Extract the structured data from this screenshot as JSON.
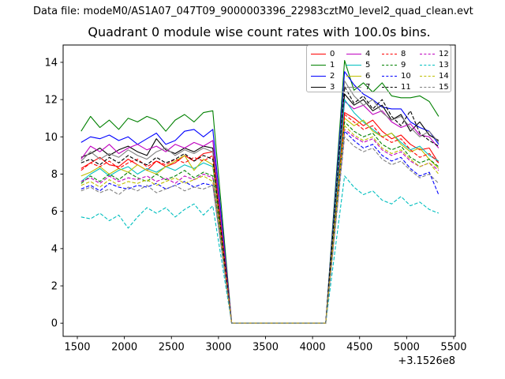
{
  "header": {
    "data_file_label": "Data file: modeM0/AS1A07_047T09_9000003396_22983cztM0_level2_quad_clean.evt"
  },
  "chart_data": {
    "type": "line",
    "title": "Quadrant 0 module wise count rates with 100.0s bins.",
    "xlabel": "",
    "ylabel": "",
    "x_offset_text": "+3.1526e8",
    "grid": false,
    "legend_position": "upper right",
    "legend_columns": 4,
    "xlim": [
      1349,
      5517
    ],
    "ylim": [
      -0.71,
      14.93
    ],
    "xticks": [
      1500,
      2000,
      2500,
      3000,
      3500,
      4000,
      4500,
      5000,
      5500
    ],
    "yticks": [
      0,
      2,
      4,
      6,
      8,
      10,
      12,
      14
    ],
    "x": [
      1540,
      1640,
      1740,
      1840,
      1940,
      2040,
      2140,
      2240,
      2340,
      2440,
      2540,
      2640,
      2740,
      2840,
      2940,
      3140,
      3240,
      3340,
      3440,
      3540,
      3640,
      3740,
      3840,
      3940,
      4040,
      4140,
      4340,
      4440,
      4540,
      4640,
      4740,
      4840,
      4940,
      5040,
      5140,
      5240,
      5340
    ],
    "series": [
      {
        "name": "0",
        "color": "#ff0000",
        "style": "solid",
        "values": [
          8.3,
          8.6,
          8.9,
          8.5,
          8.4,
          8.8,
          8.5,
          8.2,
          8.7,
          8.4,
          8.6,
          9.0,
          8.7,
          9.1,
          9.2,
          0,
          0,
          0,
          0,
          0,
          0,
          0,
          0,
          0,
          0,
          0,
          11.3,
          11.0,
          10.6,
          10.9,
          10.3,
          9.9,
          10.1,
          9.6,
          9.3,
          9.4,
          8.6
        ]
      },
      {
        "name": "1",
        "color": "#008000",
        "style": "solid",
        "values": [
          10.3,
          11.1,
          10.5,
          10.9,
          10.4,
          11.0,
          10.8,
          11.1,
          10.9,
          10.3,
          10.9,
          11.2,
          10.8,
          11.3,
          11.4,
          0,
          0,
          0,
          0,
          0,
          0,
          0,
          0,
          0,
          0,
          0,
          14.1,
          12.5,
          12.9,
          12.4,
          12.9,
          12.2,
          12.1,
          12.1,
          12.2,
          11.9,
          11.1
        ]
      },
      {
        "name": "2",
        "color": "#0000ff",
        "style": "solid",
        "values": [
          9.7,
          10.0,
          9.9,
          10.1,
          9.8,
          10.0,
          9.6,
          9.9,
          10.2,
          9.6,
          9.8,
          10.3,
          10.4,
          10.0,
          10.4,
          0,
          0,
          0,
          0,
          0,
          0,
          0,
          0,
          0,
          0,
          0,
          13.5,
          12.8,
          12.3,
          12.0,
          11.6,
          11.5,
          11.5,
          10.8,
          10.5,
          10.3,
          9.6
        ]
      },
      {
        "name": "3",
        "color": "#000000",
        "style": "solid",
        "values": [
          8.9,
          9.1,
          9.4,
          9.0,
          9.3,
          9.5,
          9.2,
          9.0,
          9.9,
          9.3,
          9.1,
          9.4,
          9.2,
          9.5,
          9.4,
          0,
          0,
          0,
          0,
          0,
          0,
          0,
          0,
          0,
          0,
          0,
          12.3,
          11.7,
          12.0,
          11.4,
          11.7,
          10.9,
          11.2,
          10.3,
          10.8,
          10.1,
          9.8
        ]
      },
      {
        "name": "4",
        "color": "#bf00bf",
        "style": "solid",
        "values": [
          8.8,
          9.5,
          9.2,
          9.6,
          9.1,
          9.4,
          9.6,
          9.3,
          9.5,
          9.2,
          9.6,
          9.4,
          9.7,
          9.5,
          9.8,
          0,
          0,
          0,
          0,
          0,
          0,
          0,
          0,
          0,
          0,
          0,
          11.9,
          11.5,
          11.7,
          11.2,
          11.4,
          10.8,
          10.5,
          10.7,
          10.1,
          10.0,
          9.4
        ]
      },
      {
        "name": "5",
        "color": "#00bfbf",
        "style": "solid",
        "values": [
          7.6,
          8.0,
          8.3,
          7.9,
          8.2,
          8.4,
          8.0,
          8.3,
          8.1,
          8.4,
          8.2,
          8.5,
          8.3,
          8.6,
          8.4,
          0,
          0,
          0,
          0,
          0,
          0,
          0,
          0,
          0,
          0,
          0,
          12.0,
          11.3,
          10.8,
          10.4,
          10.0,
          10.2,
          9.7,
          9.3,
          9.5,
          9.0,
          8.7
        ]
      },
      {
        "name": "6",
        "color": "#bfbf00",
        "style": "solid",
        "values": [
          7.9,
          8.1,
          8.4,
          8.0,
          8.3,
          8.1,
          8.5,
          8.2,
          8.0,
          8.4,
          8.7,
          9.0,
          8.2,
          8.8,
          8.5,
          0,
          0,
          0,
          0,
          0,
          0,
          0,
          0,
          0,
          0,
          0,
          11.0,
          10.6,
          10.9,
          10.3,
          10.0,
          10.2,
          9.6,
          9.2,
          9.4,
          8.8,
          8.3
        ]
      },
      {
        "name": "7",
        "color": "#808080",
        "style": "solid",
        "values": [
          8.7,
          9.2,
          8.8,
          9.1,
          8.9,
          9.3,
          9.0,
          8.8,
          9.2,
          9.4,
          9.0,
          9.3,
          9.1,
          9.4,
          9.2,
          0,
          0,
          0,
          0,
          0,
          0,
          0,
          0,
          0,
          0,
          0,
          13.0,
          12.2,
          11.7,
          12.0,
          11.3,
          10.9,
          11.1,
          10.5,
          10.0,
          10.3,
          9.7
        ]
      },
      {
        "name": "8",
        "color": "#ff0000",
        "style": "dashed",
        "values": [
          8.2,
          8.6,
          8.4,
          8.7,
          8.3,
          8.6,
          8.8,
          8.4,
          8.7,
          8.5,
          8.8,
          8.6,
          8.9,
          8.7,
          9.0,
          0,
          0,
          0,
          0,
          0,
          0,
          0,
          0,
          0,
          0,
          0,
          11.2,
          10.8,
          10.4,
          10.6,
          10.0,
          9.7,
          9.9,
          9.3,
          8.9,
          9.1,
          8.6
        ]
      },
      {
        "name": "9",
        "color": "#008000",
        "style": "dashed",
        "values": [
          7.5,
          7.9,
          7.6,
          8.0,
          7.7,
          8.1,
          7.8,
          7.6,
          8.0,
          7.7,
          7.9,
          8.2,
          7.8,
          8.1,
          7.9,
          0,
          0,
          0,
          0,
          0,
          0,
          0,
          0,
          0,
          0,
          0,
          10.8,
          10.3,
          10.0,
          10.2,
          9.6,
          9.3,
          9.5,
          8.9,
          8.6,
          8.8,
          8.4
        ]
      },
      {
        "name": "10",
        "color": "#0000ff",
        "style": "dashed",
        "values": [
          7.2,
          7.4,
          7.1,
          7.5,
          7.3,
          7.2,
          7.4,
          7.3,
          7.5,
          7.2,
          7.4,
          7.6,
          7.3,
          7.5,
          7.4,
          0,
          0,
          0,
          0,
          0,
          0,
          0,
          0,
          0,
          0,
          0,
          10.3,
          9.8,
          9.4,
          9.6,
          9.0,
          8.7,
          8.9,
          8.3,
          7.9,
          8.1,
          6.9
        ]
      },
      {
        "name": "11",
        "color": "#000000",
        "style": "dashed",
        "values": [
          8.6,
          8.8,
          8.5,
          8.9,
          8.6,
          9.0,
          8.7,
          8.5,
          8.9,
          8.6,
          8.8,
          9.1,
          8.7,
          9.0,
          8.8,
          0,
          0,
          0,
          0,
          0,
          0,
          0,
          0,
          0,
          0,
          0,
          12.7,
          11.8,
          12.2,
          11.5,
          12.0,
          11.1,
          10.6,
          11.4,
          10.2,
          9.8,
          9.5
        ]
      },
      {
        "name": "12",
        "color": "#bf00bf",
        "style": "dashed",
        "values": [
          7.6,
          7.8,
          7.5,
          7.9,
          7.6,
          7.8,
          7.7,
          7.9,
          7.6,
          7.8,
          7.5,
          7.9,
          7.7,
          8.0,
          7.8,
          0,
          0,
          0,
          0,
          0,
          0,
          0,
          0,
          0,
          0,
          0,
          10.4,
          10.0,
          9.7,
          9.9,
          9.3,
          9.0,
          9.2,
          8.7,
          8.4,
          8.6,
          8.2
        ]
      },
      {
        "name": "13",
        "color": "#00bfbf",
        "style": "dashed",
        "values": [
          5.7,
          5.6,
          5.9,
          5.5,
          5.8,
          5.1,
          5.7,
          6.2,
          5.9,
          6.2,
          5.7,
          6.1,
          6.4,
          5.8,
          6.3,
          0,
          0,
          0,
          0,
          0,
          0,
          0,
          0,
          0,
          0,
          0,
          7.9,
          7.3,
          6.9,
          7.1,
          6.6,
          6.4,
          6.8,
          6.3,
          6.5,
          6.1,
          5.9
        ]
      },
      {
        "name": "14",
        "color": "#bfbf00",
        "style": "dashed",
        "values": [
          7.4,
          7.6,
          7.3,
          7.7,
          7.4,
          7.6,
          7.5,
          7.7,
          7.4,
          7.6,
          7.8,
          7.5,
          7.7,
          7.9,
          7.6,
          0,
          0,
          0,
          0,
          0,
          0,
          0,
          0,
          0,
          0,
          0,
          10.6,
          10.1,
          9.8,
          10.0,
          9.4,
          9.1,
          9.3,
          8.8,
          8.4,
          8.6,
          8.0
        ]
      },
      {
        "name": "15",
        "color": "#808080",
        "style": "dashed",
        "values": [
          7.1,
          7.3,
          7.0,
          7.2,
          6.9,
          7.3,
          7.1,
          7.4,
          7.0,
          7.2,
          7.4,
          7.1,
          7.3,
          7.2,
          7.4,
          0,
          0,
          0,
          0,
          0,
          0,
          0,
          0,
          0,
          0,
          0,
          10.0,
          9.5,
          9.2,
          9.4,
          8.8,
          8.5,
          8.7,
          8.2,
          7.8,
          8.0,
          7.5
        ]
      }
    ]
  }
}
